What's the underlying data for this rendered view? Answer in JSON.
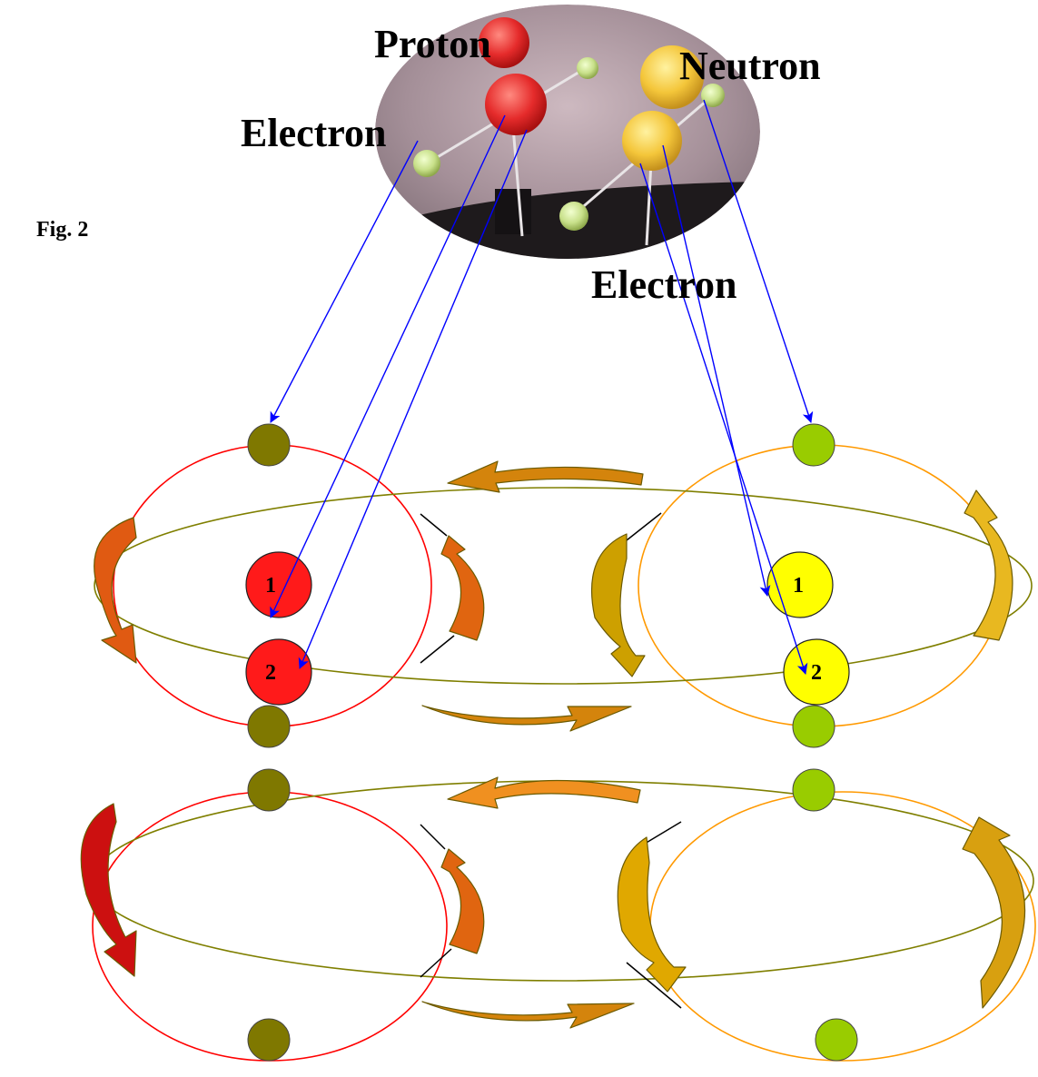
{
  "labels": {
    "proton": "Proton",
    "neutron": "Neutron",
    "electron_top": "Electron",
    "electron_bottom": "Electron",
    "figure": "Fig. 2"
  },
  "nuclei": {
    "proton_1": "1",
    "proton_2": "2",
    "neutron_1": "1",
    "neutron_2": "2"
  },
  "colors": {
    "proton": "#ff1a1a",
    "neutron": "#ffff00",
    "electron_proton_side": "#7f7800",
    "electron_neutron_side": "#99cc00",
    "orbit_proton": "#ff0000",
    "orbit_neutron": "#ff9900",
    "orbit_shared": "#7f7f00",
    "pointer_arrow": "#0000ff"
  }
}
